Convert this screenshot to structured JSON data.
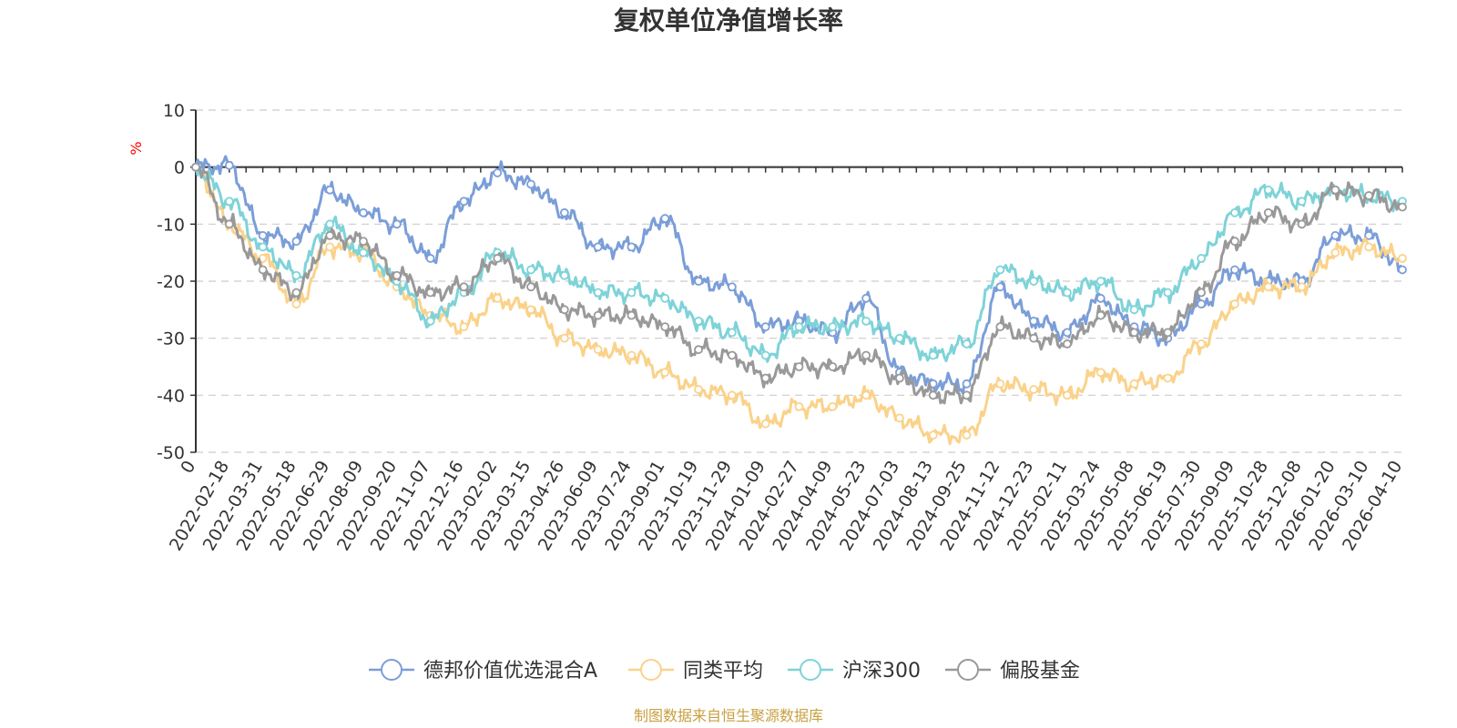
{
  "chart_data": {
    "type": "line",
    "title": "复权单位净值增长率",
    "ylabel": "%",
    "xlabel": "",
    "ylim": [
      -50,
      10
    ],
    "yticks": [
      10,
      0,
      -10,
      -20,
      -30,
      -40,
      -50
    ],
    "grid": true,
    "legend_position": "bottom",
    "categories": [
      "0",
      "2022-02-18",
      "2022-03-31",
      "2022-05-18",
      "2022-06-29",
      "2022-08-09",
      "2022-09-20",
      "2022-11-07",
      "2022-12-16",
      "2023-02-02",
      "2023-03-15",
      "2023-04-26",
      "2023-06-09",
      "2023-07-24",
      "2023-09-01",
      "2023-10-19",
      "2023-11-29",
      "2024-01-09",
      "2024-02-27",
      "2024-04-09",
      "2024-05-23",
      "2024-07-03",
      "2024-08-13",
      "2024-09-25",
      "2024-11-12",
      "2024-12-23",
      "2025-02-11",
      "2025-03-24",
      "2025-05-08",
      "2025-06-19",
      "2025-07-30",
      "2025-09-09",
      "2025-10-28",
      "2025-12-08",
      "2026-01-20",
      "2026-03-10",
      "2026-04-10"
    ],
    "series": [
      {
        "name": "德邦价值优选混合A",
        "color": "#7b9ed8",
        "values": [
          0,
          0.3,
          -12,
          -13,
          -4,
          -8,
          -10,
          -16,
          -6,
          -1,
          -3,
          -8,
          -14,
          -14,
          -9,
          -20,
          -21,
          -28,
          -27,
          -29,
          -23,
          -36,
          -38,
          -38,
          -21,
          -27,
          -29,
          -23,
          -28,
          -30,
          -24,
          -18,
          -20,
          -20,
          -12,
          -12,
          -18
        ]
      },
      {
        "name": "同类平均",
        "color": "#fad28a",
        "values": [
          0,
          -10,
          -16,
          -24,
          -14,
          -15,
          -21,
          -26,
          -28,
          -23,
          -25,
          -30,
          -32,
          -33,
          -36,
          -39,
          -40,
          -45,
          -42,
          -42,
          -40,
          -44,
          -47,
          -47,
          -38,
          -39,
          -40,
          -36,
          -38,
          -37,
          -31,
          -24,
          -21,
          -21,
          -15,
          -14,
          -16
        ]
      },
      {
        "name": "沪深300",
        "color": "#7ed3d8",
        "values": [
          0,
          -6,
          -14,
          -19,
          -10,
          -15,
          -20,
          -27,
          -22,
          -15,
          -18,
          -19,
          -22,
          -22,
          -23,
          -27,
          -29,
          -33,
          -28,
          -28,
          -27,
          -30,
          -33,
          -31,
          -18,
          -20,
          -22,
          -20,
          -25,
          -22,
          -16,
          -8,
          -4,
          -6,
          -4,
          -5,
          -6
        ]
      },
      {
        "name": "偏股基金",
        "color": "#999999",
        "values": [
          0,
          -10,
          -18,
          -22,
          -12,
          -13,
          -19,
          -22,
          -21,
          -16,
          -21,
          -25,
          -26,
          -26,
          -28,
          -32,
          -33,
          -37,
          -35,
          -35,
          -33,
          -37,
          -40,
          -40,
          -28,
          -30,
          -31,
          -26,
          -29,
          -29,
          -22,
          -13,
          -8,
          -10,
          -4,
          -5,
          -7
        ]
      }
    ]
  },
  "source_note": "制图数据来自恒生聚源数据库"
}
